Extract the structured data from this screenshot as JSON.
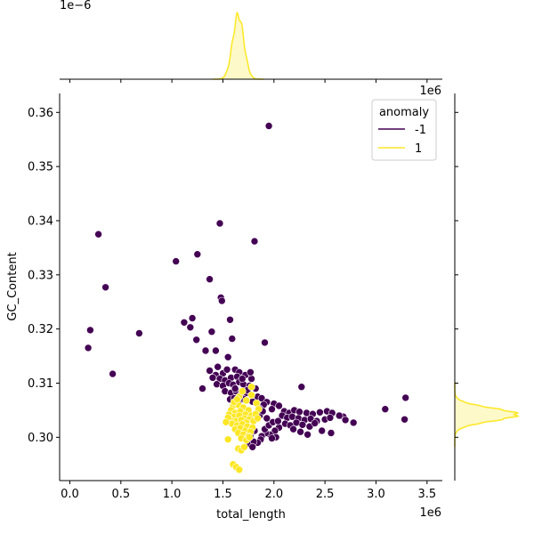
{
  "chart_data": {
    "type": "scatter",
    "xlabel": "total_length",
    "ylabel": "GC_Content",
    "x_offset_label": "1e6",
    "top_marginal_offset_label": "1e−6",
    "right_marginal_offset_label": "1e6",
    "xlim": [
      -0.1,
      3.65
    ],
    "ylim": [
      0.292,
      0.3635
    ],
    "x_ticks": [
      0.0,
      0.5,
      1.0,
      1.5,
      2.0,
      2.5,
      3.0,
      3.5
    ],
    "x_tick_labels": [
      "0.0",
      "0.5",
      "1.0",
      "1.5",
      "2.0",
      "2.5",
      "3.0",
      "3.5"
    ],
    "y_ticks": [
      0.3,
      0.31,
      0.32,
      0.33,
      0.34,
      0.35,
      0.36
    ],
    "y_tick_labels": [
      "0.30",
      "0.31",
      "0.32",
      "0.33",
      "0.34",
      "0.35",
      "0.36"
    ],
    "grid": false,
    "legend": {
      "title": "anomaly",
      "placement": "top-right",
      "entries": [
        {
          "label": "-1",
          "color": "#440154"
        },
        {
          "label": "1",
          "color": "#fde725"
        }
      ]
    },
    "series": [
      {
        "label": "-1",
        "color": "#440154",
        "points": [
          [
            1.95,
            0.3575
          ],
          [
            1.47,
            0.3395
          ],
          [
            0.28,
            0.3375
          ],
          [
            1.81,
            0.3362
          ],
          [
            1.25,
            0.3338
          ],
          [
            1.04,
            0.3325
          ],
          [
            0.35,
            0.3277
          ],
          [
            1.37,
            0.3292
          ],
          [
            1.48,
            0.3258
          ],
          [
            1.49,
            0.3252
          ],
          [
            1.57,
            0.3217
          ],
          [
            1.12,
            0.3212
          ],
          [
            1.2,
            0.322
          ],
          [
            1.18,
            0.3203
          ],
          [
            0.2,
            0.3198
          ],
          [
            0.68,
            0.3192
          ],
          [
            1.39,
            0.3195
          ],
          [
            1.24,
            0.318
          ],
          [
            1.59,
            0.3182
          ],
          [
            1.91,
            0.3175
          ],
          [
            0.18,
            0.3165
          ],
          [
            1.33,
            0.316
          ],
          [
            1.43,
            0.316
          ],
          [
            1.55,
            0.3148
          ],
          [
            0.42,
            0.3117
          ],
          [
            1.37,
            0.3123
          ],
          [
            1.43,
            0.3115
          ],
          [
            1.5,
            0.3118
          ],
          [
            1.62,
            0.3125
          ],
          [
            1.66,
            0.312
          ],
          [
            1.4,
            0.311
          ],
          [
            1.47,
            0.3108
          ],
          [
            1.52,
            0.3105
          ],
          [
            1.58,
            0.311
          ],
          [
            1.64,
            0.3112
          ],
          [
            1.72,
            0.3115
          ],
          [
            1.78,
            0.3108
          ],
          [
            1.44,
            0.3098
          ],
          [
            1.5,
            0.3095
          ],
          [
            1.56,
            0.31
          ],
          [
            1.6,
            0.3097
          ],
          [
            1.66,
            0.3102
          ],
          [
            1.7,
            0.3098
          ],
          [
            1.76,
            0.3095
          ],
          [
            1.82,
            0.309
          ],
          [
            1.3,
            0.309
          ],
          [
            1.52,
            0.3085
          ],
          [
            1.58,
            0.3082
          ],
          [
            1.63,
            0.3085
          ],
          [
            1.68,
            0.308
          ],
          [
            1.73,
            0.3082
          ],
          [
            1.84,
            0.3075
          ],
          [
            1.88,
            0.3072
          ],
          [
            1.57,
            0.307
          ],
          [
            1.61,
            0.3072
          ],
          [
            1.66,
            0.3068
          ],
          [
            1.71,
            0.307
          ],
          [
            1.79,
            0.3066
          ],
          [
            1.93,
            0.3065
          ],
          [
            2.0,
            0.3062
          ],
          [
            2.05,
            0.3058
          ],
          [
            2.27,
            0.3093
          ],
          [
            1.98,
            0.3052
          ],
          [
            1.9,
            0.306
          ],
          [
            1.86,
            0.3053
          ],
          [
            2.1,
            0.3048
          ],
          [
            2.15,
            0.3045
          ],
          [
            2.2,
            0.305
          ],
          [
            2.25,
            0.3047
          ],
          [
            2.32,
            0.3045
          ],
          [
            2.38,
            0.3043
          ],
          [
            2.45,
            0.3046
          ],
          [
            2.52,
            0.3048
          ],
          [
            2.57,
            0.3045
          ],
          [
            2.08,
            0.304
          ],
          [
            2.13,
            0.3036
          ],
          [
            2.18,
            0.3038
          ],
          [
            2.24,
            0.3035
          ],
          [
            2.3,
            0.3032
          ],
          [
            2.36,
            0.3034
          ],
          [
            2.42,
            0.303
          ],
          [
            2.5,
            0.3033
          ],
          [
            2.55,
            0.3036
          ],
          [
            2.68,
            0.3038
          ],
          [
            2.7,
            0.3032
          ],
          [
            2.78,
            0.3027
          ],
          [
            2.11,
            0.3025
          ],
          [
            2.16,
            0.3022
          ],
          [
            2.22,
            0.3027
          ],
          [
            2.28,
            0.3023
          ],
          [
            2.35,
            0.302
          ],
          [
            2.47,
            0.3012
          ],
          [
            2.56,
            0.3008
          ],
          [
            2.05,
            0.3018
          ],
          [
            2.01,
            0.3012
          ],
          [
            1.96,
            0.3005
          ],
          [
            1.92,
            0.3008
          ],
          [
            1.88,
            0.3002
          ],
          [
            2.02,
            0.3
          ],
          [
            1.98,
            0.2998
          ],
          [
            1.87,
            0.2996
          ],
          [
            1.84,
            0.299
          ],
          [
            1.8,
            0.2992
          ],
          [
            1.74,
            0.2988
          ],
          [
            1.79,
            0.2982
          ],
          [
            1.91,
            0.3015
          ],
          [
            1.95,
            0.3022
          ],
          [
            1.99,
            0.3028
          ],
          [
            2.04,
            0.303
          ],
          [
            3.09,
            0.3052
          ],
          [
            3.29,
            0.3073
          ],
          [
            3.28,
            0.3033
          ],
          [
            1.83,
            0.3045
          ],
          [
            1.86,
            0.304
          ],
          [
            1.89,
            0.3048
          ],
          [
            1.93,
            0.3035
          ],
          [
            1.69,
            0.3108
          ],
          [
            1.54,
            0.3125
          ],
          [
            1.45,
            0.313
          ],
          [
            1.77,
            0.312
          ],
          [
            1.74,
            0.3087
          ],
          [
            1.62,
            0.309
          ],
          [
            1.81,
            0.3012
          ],
          [
            1.77,
            0.3002
          ],
          [
            2.64,
            0.304
          ],
          [
            2.4,
            0.3026
          ],
          [
            2.19,
            0.3015
          ],
          [
            2.26,
            0.301
          ],
          [
            2.33,
            0.3005
          ]
        ]
      },
      {
        "label": "1",
        "color": "#fde725",
        "points": [
          [
            1.6,
            0.3058
          ],
          [
            1.65,
            0.306
          ],
          [
            1.7,
            0.3055
          ],
          [
            1.75,
            0.305
          ],
          [
            1.58,
            0.305
          ],
          [
            1.62,
            0.3045
          ],
          [
            1.67,
            0.3048
          ],
          [
            1.72,
            0.3042
          ],
          [
            1.78,
            0.304
          ],
          [
            1.56,
            0.3042
          ],
          [
            1.61,
            0.3038
          ],
          [
            1.66,
            0.304
          ],
          [
            1.71,
            0.3035
          ],
          [
            1.76,
            0.3033
          ],
          [
            1.8,
            0.303
          ],
          [
            1.57,
            0.3033
          ],
          [
            1.63,
            0.303
          ],
          [
            1.68,
            0.3032
          ],
          [
            1.73,
            0.3027
          ],
          [
            1.59,
            0.3025
          ],
          [
            1.64,
            0.3022
          ],
          [
            1.69,
            0.3024
          ],
          [
            1.74,
            0.302
          ],
          [
            1.79,
            0.3018
          ],
          [
            1.62,
            0.3015
          ],
          [
            1.67,
            0.3017
          ],
          [
            1.72,
            0.3012
          ],
          [
            1.77,
            0.301
          ],
          [
            1.65,
            0.3008
          ],
          [
            1.7,
            0.3005
          ],
          [
            1.75,
            0.3002
          ],
          [
            1.68,
            0.2998
          ],
          [
            1.73,
            0.2995
          ],
          [
            1.55,
            0.3036
          ],
          [
            1.53,
            0.3028
          ],
          [
            1.66,
            0.3075
          ],
          [
            1.73,
            0.3068
          ],
          [
            1.78,
            0.3078
          ],
          [
            1.83,
            0.3063
          ],
          [
            1.85,
            0.3052
          ],
          [
            1.82,
            0.3043
          ],
          [
            1.84,
            0.3035
          ],
          [
            1.69,
            0.3085
          ],
          [
            1.55,
            0.2996
          ],
          [
            1.65,
            0.2979
          ],
          [
            1.68,
            0.2976
          ],
          [
            1.71,
            0.2982
          ],
          [
            1.6,
            0.295
          ],
          [
            1.63,
            0.2945
          ],
          [
            1.66,
            0.294
          ],
          [
            1.78,
            0.3093
          ],
          [
            1.76,
            0.3
          ],
          [
            1.61,
            0.3065
          ],
          [
            1.64,
            0.307
          ]
        ]
      }
    ],
    "marginal_x": {
      "series": "1",
      "mode": 1.65,
      "spread": 0.055,
      "peak_value": 1.08,
      "unit_label": "1e−6"
    },
    "marginal_y": {
      "series": "1",
      "mode": 0.3042,
      "spread": 0.0012,
      "peak_value": 1.0,
      "unit_label": "1e6"
    }
  }
}
